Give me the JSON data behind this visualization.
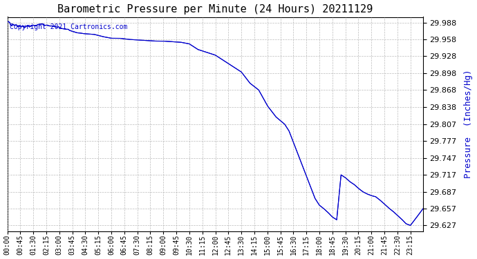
{
  "title": "Barometric Pressure per Minute (24 Hours) 20211129",
  "ylabel": "Pressure  (Inches/Hg)",
  "copyright_text": "Copyright 2021 Cartronics.com",
  "line_color": "#0000cc",
  "background_color": "#ffffff",
  "grid_color": "#aaaaaa",
  "ylabel_color": "#0000cc",
  "copyright_color": "#0000cc",
  "ylim": [
    29.617,
    29.998
  ],
  "yticks": [
    29.988,
    29.958,
    29.928,
    29.898,
    29.868,
    29.838,
    29.807,
    29.777,
    29.747,
    29.717,
    29.687,
    29.657,
    29.627
  ],
  "xtick_labels": [
    "00:00",
    "00:45",
    "01:30",
    "02:15",
    "03:00",
    "03:45",
    "04:30",
    "05:15",
    "06:00",
    "06:45",
    "07:30",
    "08:15",
    "09:00",
    "09:45",
    "10:30",
    "11:15",
    "12:00",
    "12:45",
    "13:30",
    "14:15",
    "15:00",
    "15:45",
    "16:30",
    "17:15",
    "18:00",
    "18:45",
    "19:30",
    "20:15",
    "21:00",
    "21:45",
    "22:30",
    "23:15"
  ],
  "kx": [
    0,
    30,
    60,
    90,
    120,
    150,
    180,
    210,
    240,
    270,
    300,
    330,
    360,
    390,
    420,
    450,
    480,
    510,
    540,
    570,
    600,
    630,
    660,
    690,
    720,
    750,
    780,
    810,
    840,
    870,
    900,
    930,
    960,
    975,
    990,
    1005,
    1020,
    1035,
    1050,
    1065,
    1080,
    1095,
    1110,
    1125,
    1140,
    1155,
    1170,
    1185,
    1200,
    1215,
    1230,
    1245,
    1260,
    1275,
    1290,
    1305,
    1320,
    1335,
    1350,
    1365,
    1380,
    1395,
    1410,
    1439
  ],
  "ky": [
    29.988,
    29.984,
    29.98,
    29.983,
    29.985,
    29.982,
    29.979,
    29.975,
    29.97,
    29.968,
    29.967,
    29.963,
    29.96,
    29.96,
    29.958,
    29.957,
    29.956,
    29.955,
    29.955,
    29.954,
    29.953,
    29.95,
    29.94,
    29.935,
    29.93,
    29.92,
    29.91,
    29.9,
    29.88,
    29.868,
    29.84,
    29.82,
    29.807,
    29.795,
    29.775,
    29.755,
    29.735,
    29.715,
    29.695,
    29.675,
    29.663,
    29.657,
    29.65,
    29.642,
    29.637,
    29.717,
    29.712,
    29.705,
    29.7,
    29.693,
    29.687,
    29.683,
    29.68,
    29.678,
    29.672,
    29.665,
    29.658,
    29.652,
    29.645,
    29.638,
    29.63,
    29.627,
    29.637,
    29.657
  ]
}
